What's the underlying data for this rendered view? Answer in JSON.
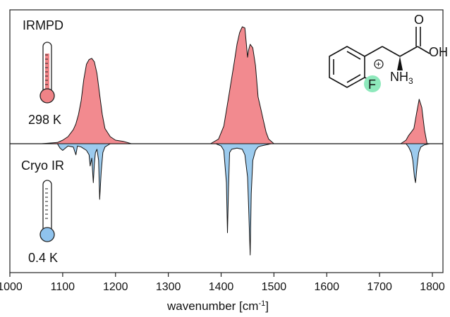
{
  "chart_data": {
    "type": "area",
    "xlabel_main": "wavenumber [cm",
    "xlabel_sup": "-1",
    "xlabel_close": "]",
    "xlim": [
      1000,
      1820
    ],
    "xticks": [
      1000,
      1100,
      1200,
      1300,
      1400,
      1500,
      1600,
      1700,
      1800
    ],
    "grid": false,
    "series": [
      {
        "name": "IRMPD",
        "temperature": "298 K",
        "color": "#f28a8f",
        "direction": "up",
        "x": [
          1060,
          1090,
          1100,
          1110,
          1120,
          1125,
          1130,
          1135,
          1140,
          1145,
          1150,
          1155,
          1160,
          1165,
          1170,
          1175,
          1180,
          1190,
          1200,
          1215,
          1230,
          1380,
          1395,
          1405,
          1415,
          1425,
          1430,
          1435,
          1440,
          1445,
          1450,
          1452,
          1455,
          1460,
          1465,
          1470,
          1475,
          1480,
          1485,
          1490,
          1500,
          1740,
          1750,
          1755,
          1760,
          1765,
          1770,
          1775,
          1780,
          1785,
          1790
        ],
        "y": [
          0,
          0.01,
          0.03,
          0.06,
          0.12,
          0.17,
          0.25,
          0.37,
          0.55,
          0.68,
          0.72,
          0.73,
          0.7,
          0.6,
          0.42,
          0.25,
          0.13,
          0.06,
          0.03,
          0.02,
          0,
          0,
          0.04,
          0.15,
          0.42,
          0.7,
          0.85,
          0.95,
          1.0,
          0.99,
          0.74,
          0.8,
          0.85,
          0.82,
          0.67,
          0.4,
          0.3,
          0.2,
          0.1,
          0.04,
          0,
          0,
          0.03,
          0.07,
          0.1,
          0.13,
          0.26,
          0.38,
          0.31,
          0.12,
          0
        ]
      },
      {
        "name": "Cryo IR",
        "temperature": "0.4 K",
        "color": "#9ccbee",
        "direction": "down",
        "x": [
          1090,
          1095,
          1100,
          1110,
          1120,
          1125,
          1128,
          1135,
          1145,
          1150,
          1152,
          1155,
          1158,
          1160,
          1162,
          1165,
          1168,
          1170,
          1173,
          1176,
          1180,
          1190,
          1390,
          1400,
          1405,
          1410,
          1412,
          1414,
          1416,
          1420,
          1430,
          1440,
          1445,
          1450,
          1452,
          1455,
          1457,
          1460,
          1465,
          1470,
          1475,
          1485,
          1495,
          1750,
          1755,
          1760,
          1763,
          1766,
          1768,
          1771,
          1774,
          1778,
          1785,
          1795
        ],
        "y": [
          0,
          0.04,
          0.06,
          0.02,
          0.03,
          0.1,
          0.02,
          0.03,
          0.06,
          0.1,
          0.2,
          0.13,
          0.35,
          0.18,
          0.08,
          0.05,
          0.15,
          0.5,
          0.25,
          0.08,
          0.03,
          0,
          0,
          0.02,
          0.06,
          0.35,
          0.8,
          0.4,
          0.08,
          0.05,
          0.04,
          0.05,
          0.1,
          0.3,
          0.55,
          1.0,
          0.45,
          0.15,
          0.06,
          0.03,
          0.02,
          0.01,
          0,
          0,
          0.03,
          0.08,
          0.15,
          0.3,
          0.35,
          0.2,
          0.08,
          0.03,
          0.01,
          0
        ]
      }
    ]
  },
  "labels": {
    "top_trace": "IRMPD",
    "top_temp": "298 K",
    "bottom_trace": "Cryo IR",
    "bottom_temp": "0.4 K"
  },
  "molecule": {
    "carbonyl_oxygen": "O",
    "hydroxyl": "OH",
    "fluorine": "F",
    "amine": "NH",
    "amine_subscript": "3",
    "charge": "+"
  },
  "colors": {
    "irmpd_fill": "#f28a8f",
    "cryo_fill": "#9ccbee",
    "fluorine_highlight": "#8ee9bc",
    "hot_thermometer": "#ef8387",
    "cold_thermometer": "#8fc3ee"
  }
}
